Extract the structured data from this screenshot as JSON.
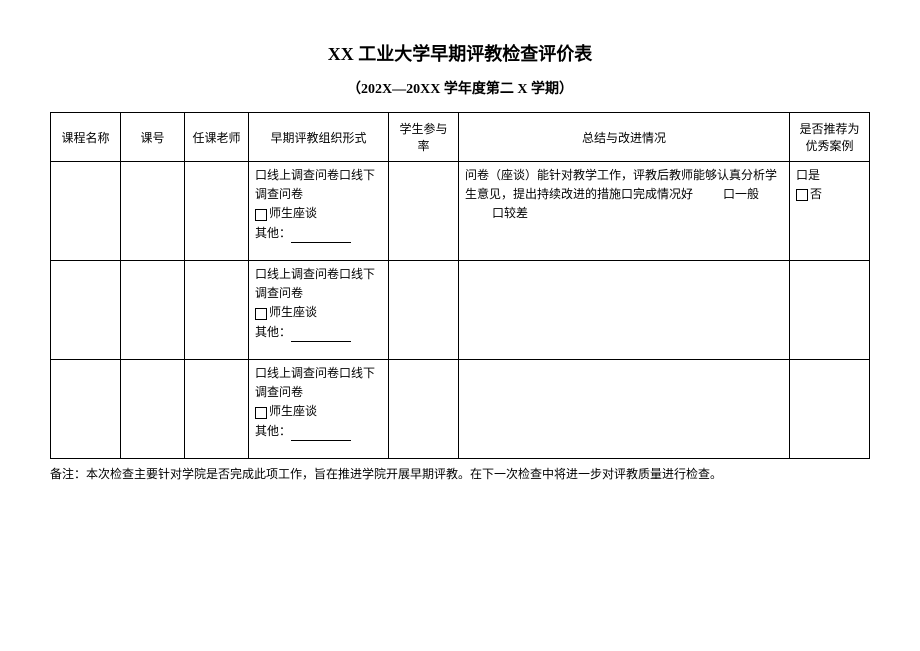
{
  "title": "XX 工业大学早期评教检查评价表",
  "subtitle": "（202X—20XX 学年度第二 X 学期）",
  "headers": {
    "course": "课程名称",
    "num": "课号",
    "teacher": "任课老师",
    "form": "早期评教组织形式",
    "rate": "学生参与率",
    "summary": "总结与改进情况",
    "rec": "是否推荐为优秀案例"
  },
  "form_options": {
    "opt1": "口线上调查问卷口线下调查问卷",
    "opt2": "师生座谈",
    "opt3_label": "其他："
  },
  "summary_text": {
    "line1": "问卷（座谈）能针对教学工作，评教后教师能够认真分析学生意见，提出持续改进的措施口完成情况好",
    "mid": "口一般",
    "bad": "口较差"
  },
  "rec_options": {
    "yes": "口是",
    "no": "否"
  },
  "note": "备注：本次检查主要针对学院是否完成此项工作，旨在推进学院开展早期评教。在下一次检查中将进一步对评教质量进行检查。"
}
